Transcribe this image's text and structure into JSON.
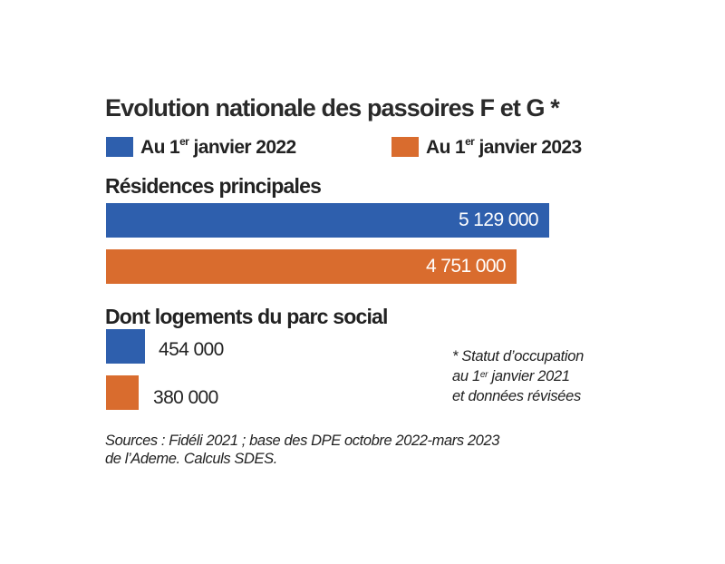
{
  "colors": {
    "series_2022": "#2e5fad",
    "series_2023": "#d96c2e"
  },
  "chart_data": {
    "type": "bar",
    "title": "Evolution nationale des passoires F et G *",
    "legend_placement": "top",
    "series": [
      {
        "name_prefix": "Au 1",
        "name_sup": "er",
        "name_suffix": " janvier 2022",
        "color": "#2e5fad"
      },
      {
        "name_prefix": "Au 1",
        "name_sup": "er",
        "name_suffix": " janvier 2023",
        "color": "#d96c2e"
      }
    ],
    "groups": [
      {
        "label": "Résidences principales",
        "values": [
          5129000,
          4751000
        ],
        "value_labels": [
          "5 129 000",
          "4 751 000"
        ]
      },
      {
        "label": "Dont logements du parc social",
        "values": [
          454000,
          380000
        ],
        "value_labels": [
          "454 000",
          "380 000"
        ]
      }
    ]
  },
  "note": {
    "line1": "* Statut d’occupation",
    "line2_prefix": "au 1",
    "line2_sup": "er",
    "line2_suffix": " janvier 2021",
    "line3": "et données révisées"
  },
  "sources": {
    "line1": "Sources : Fidéli 2021 ; base des DPE octobre 2022-mars 2023",
    "line2": "de l’Ademe. Calculs SDES."
  }
}
